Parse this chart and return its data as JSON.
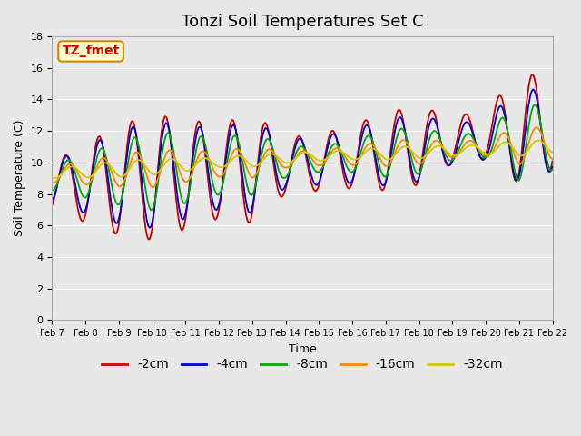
{
  "title": "Tonzi Soil Temperatures Set C",
  "xlabel": "Time",
  "ylabel": "Soil Temperature (C)",
  "annotation": "TZ_fmet",
  "ylim": [
    0,
    18
  ],
  "yticks": [
    0,
    2,
    4,
    6,
    8,
    10,
    12,
    14,
    16,
    18
  ],
  "series_colors": {
    "-2cm": "#cc0000",
    "-4cm": "#0000cc",
    "-8cm": "#00aa00",
    "-16cm": "#ff8800",
    "-32cm": "#cccc00"
  },
  "legend_labels": [
    "-2cm",
    "-4cm",
    "-8cm",
    "-16cm",
    "-32cm"
  ],
  "xtick_labels": [
    "Feb 7",
    "Feb 8",
    "Feb 9",
    "Feb 10",
    "Feb 11",
    "Feb 12",
    "Feb 13",
    "Feb 14",
    "Feb 15",
    "Feb 16",
    "Feb 17",
    "Feb 18",
    "Feb 19",
    "Feb 20",
    "Feb 21",
    "Feb 22"
  ],
  "background_color": "#e8e8e8",
  "plot_bg_color": "#e8e8e8",
  "annotation_bg": "#ffffcc",
  "annotation_border": "#cc8800",
  "annotation_text_color": "#cc0000",
  "title_fontsize": 13,
  "axis_fontsize": 9,
  "legend_fontsize": 10
}
